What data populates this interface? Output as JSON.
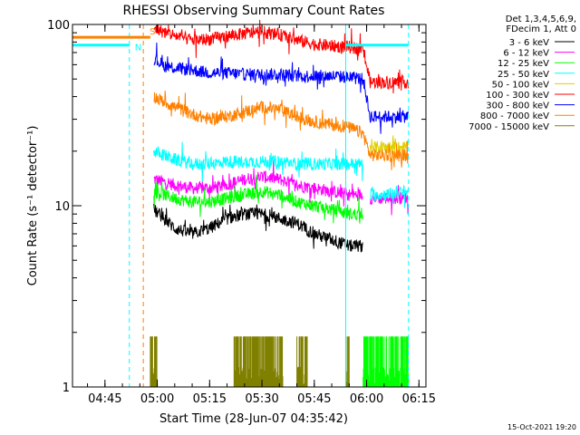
{
  "colors": {
    "axis": "#000000",
    "black": "#000000",
    "magenta": "#ff00ff",
    "green": "#00ff00",
    "cyan": "#00ffff",
    "yellow": "#e0d000",
    "red": "#ff0000",
    "blue": "#0000ff",
    "orange": "#ff8000",
    "olive": "#808000"
  },
  "chart_data": {
    "type": "line",
    "title": "RHESSI Observing Summary Count Rates",
    "xlabel": "Start Time (28-Jun-07 04:35:42)",
    "ylabel": "Count Rate (s⁻¹ detector⁻¹)",
    "yscale": "log",
    "ylim": [
      1,
      100
    ],
    "xlim": [
      "04:35:42",
      "06:17:00"
    ],
    "xticks": [
      "04:45",
      "05:00",
      "05:15",
      "05:30",
      "05:45",
      "06:00",
      "06:15"
    ],
    "yticks": [
      "1",
      "10",
      "100"
    ],
    "timestamp": "15-Oct-2021 19:20",
    "legend_placement": "top-right",
    "legend_header": [
      "Det 1,3,4,5,6,9,",
      "FDecim 1, Att 0"
    ],
    "legend": [
      {
        "label": "3 - 6 keV",
        "color": "#000000"
      },
      {
        "label": "6 - 12 keV",
        "color": "#ff00ff"
      },
      {
        "label": "12 - 25 keV",
        "color": "#00ff00"
      },
      {
        "label": "25 - 50 keV",
        "color": "#00ffff"
      },
      {
        "label": "50 - 100 keV",
        "color": "#e0d000"
      },
      {
        "label": "100 - 300 keV",
        "color": "#ff0000"
      },
      {
        "label": "300 - 800 keV",
        "color": "#0000ff"
      },
      {
        "label": "800 - 7000 keV",
        "color": "#ff8000"
      },
      {
        "label": "7000 - 15000 keV",
        "color": "#808000"
      }
    ],
    "annotations": {
      "flag_letters": [
        "N",
        "S"
      ],
      "vertical_markers": [
        {
          "time": "04:52",
          "color": "#00ffff",
          "style": "dashed"
        },
        {
          "time": "04:56",
          "color": "#ff8000",
          "style": "dashed"
        },
        {
          "time": "05:54",
          "color": "#00ffff",
          "style": "solid"
        },
        {
          "time": "06:12",
          "color": "#00ffff",
          "style": "dashed"
        }
      ],
      "flag_bars": [
        {
          "color": "#ff8000",
          "y": 85,
          "ranges": [
            [
              "04:35:42",
              "04:58"
            ]
          ]
        },
        {
          "color": "#00ffff",
          "y": 77,
          "ranges": [
            [
              "04:35:42",
              "04:52"
            ],
            [
              "05:54",
              "06:12"
            ]
          ]
        }
      ]
    },
    "series": [
      {
        "name": "6 - 12 keV",
        "color": "#ff00ff",
        "start": "04:59",
        "end": "06:12",
        "gap": [
          "05:59",
          "06:01"
        ],
        "points": [
          [
            "04:59",
            14
          ],
          [
            "05:05",
            13
          ],
          [
            "05:10",
            12.5
          ],
          [
            "05:15",
            12.5
          ],
          [
            "05:20",
            13
          ],
          [
            "05:25",
            14
          ],
          [
            "05:30",
            14.5
          ],
          [
            "05:35",
            14
          ],
          [
            "05:40",
            13
          ],
          [
            "05:45",
            12.5
          ],
          [
            "05:50",
            12
          ],
          [
            "05:55",
            11.5
          ],
          [
            "05:59",
            11.5
          ],
          [
            "06:01",
            11
          ],
          [
            "06:05",
            11
          ],
          [
            "06:12",
            11
          ]
        ]
      },
      {
        "name": "12 - 25 keV",
        "color": "#00ff00",
        "start": "04:59",
        "end": "05:59",
        "points": [
          [
            "04:59",
            12
          ],
          [
            "05:05",
            11
          ],
          [
            "05:10",
            10.5
          ],
          [
            "05:15",
            10.5
          ],
          [
            "05:20",
            11
          ],
          [
            "05:25",
            11.5
          ],
          [
            "05:30",
            12
          ],
          [
            "05:35",
            11.5
          ],
          [
            "05:40",
            10.5
          ],
          [
            "05:45",
            10
          ],
          [
            "05:50",
            9.5
          ],
          [
            "05:55",
            9
          ],
          [
            "05:59",
            9
          ]
        ]
      },
      {
        "name": "3 - 6 keV",
        "color": "#000000",
        "start": "04:59",
        "end": "05:59",
        "points": [
          [
            "04:59",
            9.5
          ],
          [
            "05:02",
            8.5
          ],
          [
            "05:05",
            7.5
          ],
          [
            "05:10",
            7
          ],
          [
            "05:15",
            7.5
          ],
          [
            "05:20",
            8.5
          ],
          [
            "05:25",
            9
          ],
          [
            "05:30",
            9
          ],
          [
            "05:35",
            8.5
          ],
          [
            "05:40",
            8
          ],
          [
            "05:45",
            7
          ],
          [
            "05:50",
            6.5
          ],
          [
            "05:55",
            6
          ],
          [
            "05:59",
            6
          ]
        ]
      },
      {
        "name": "25 - 50 keV",
        "color": "#00ffff",
        "start": "04:59",
        "end": "06:12",
        "gap": [
          "05:59",
          "06:01"
        ],
        "points": [
          [
            "04:59",
            20
          ],
          [
            "05:05",
            18
          ],
          [
            "05:10",
            17
          ],
          [
            "05:15",
            17
          ],
          [
            "05:20",
            17.5
          ],
          [
            "05:25",
            17.5
          ],
          [
            "05:30",
            17.5
          ],
          [
            "05:35",
            17.5
          ],
          [
            "05:40",
            17
          ],
          [
            "05:45",
            17
          ],
          [
            "05:50",
            17
          ],
          [
            "05:55",
            17
          ],
          [
            "05:59",
            17
          ],
          [
            "06:01",
            11.5
          ],
          [
            "06:05",
            11.5
          ],
          [
            "06:12",
            12
          ]
        ]
      },
      {
        "name": "50 - 100 keV",
        "color": "#e0d000",
        "start": "06:01",
        "end": "06:12",
        "points": [
          [
            "06:01",
            21
          ],
          [
            "06:05",
            21
          ],
          [
            "06:12",
            21
          ]
        ]
      },
      {
        "name": "800 - 7000 keV",
        "color": "#ff8000",
        "start": "04:59",
        "end": "06:12",
        "points": [
          [
            "04:59",
            40
          ],
          [
            "05:05",
            35
          ],
          [
            "05:10",
            32
          ],
          [
            "05:15",
            30
          ],
          [
            "05:20",
            31
          ],
          [
            "05:25",
            33
          ],
          [
            "05:30",
            35
          ],
          [
            "05:35",
            34
          ],
          [
            "05:40",
            31
          ],
          [
            "05:45",
            29
          ],
          [
            "05:50",
            28
          ],
          [
            "05:55",
            27
          ],
          [
            "05:59",
            25
          ],
          [
            "06:01",
            19
          ],
          [
            "06:05",
            19
          ],
          [
            "06:12",
            19
          ]
        ]
      },
      {
        "name": "300 - 800 keV",
        "color": "#0000ff",
        "start": "04:59",
        "end": "06:12",
        "points": [
          [
            "04:59",
            65
          ],
          [
            "05:02",
            59
          ],
          [
            "05:10",
            56
          ],
          [
            "05:15",
            54
          ],
          [
            "05:20",
            54
          ],
          [
            "05:25",
            53
          ],
          [
            "05:30",
            53
          ],
          [
            "05:35",
            53
          ],
          [
            "05:40",
            52
          ],
          [
            "05:45",
            52
          ],
          [
            "05:50",
            52
          ],
          [
            "05:55",
            51
          ],
          [
            "05:59",
            50
          ],
          [
            "06:01",
            31
          ],
          [
            "06:05",
            31
          ],
          [
            "06:12",
            31
          ]
        ]
      },
      {
        "name": "100 - 300 keV",
        "color": "#ff0000",
        "start": "04:59",
        "end": "06:12",
        "points": [
          [
            "04:59",
            95
          ],
          [
            "05:05",
            87
          ],
          [
            "05:10",
            82
          ],
          [
            "05:15",
            83
          ],
          [
            "05:20",
            86
          ],
          [
            "05:25",
            89
          ],
          [
            "05:30",
            91
          ],
          [
            "05:35",
            88
          ],
          [
            "05:40",
            82
          ],
          [
            "05:45",
            78
          ],
          [
            "05:50",
            76
          ],
          [
            "05:55",
            75
          ],
          [
            "05:59",
            73
          ],
          [
            "06:01",
            48
          ],
          [
            "06:05",
            48
          ],
          [
            "06:12",
            48
          ]
        ]
      },
      {
        "name": "7000 - 15000 keV",
        "color": "#808000",
        "start": "04:58",
        "end": "06:00",
        "bursts": [
          [
            "04:58",
            "05:00",
            1.9
          ],
          [
            "05:22",
            "05:36",
            1.9
          ],
          [
            "05:40",
            "05:43",
            1.9
          ],
          [
            "05:54",
            "05:55",
            1.9
          ]
        ]
      },
      {
        "name": "12 - 25 keV (late)",
        "color": "#00ff00",
        "start": "05:59",
        "end": "06:12",
        "bursts": [
          [
            "05:59",
            "06:12",
            1.9
          ]
        ]
      }
    ]
  }
}
